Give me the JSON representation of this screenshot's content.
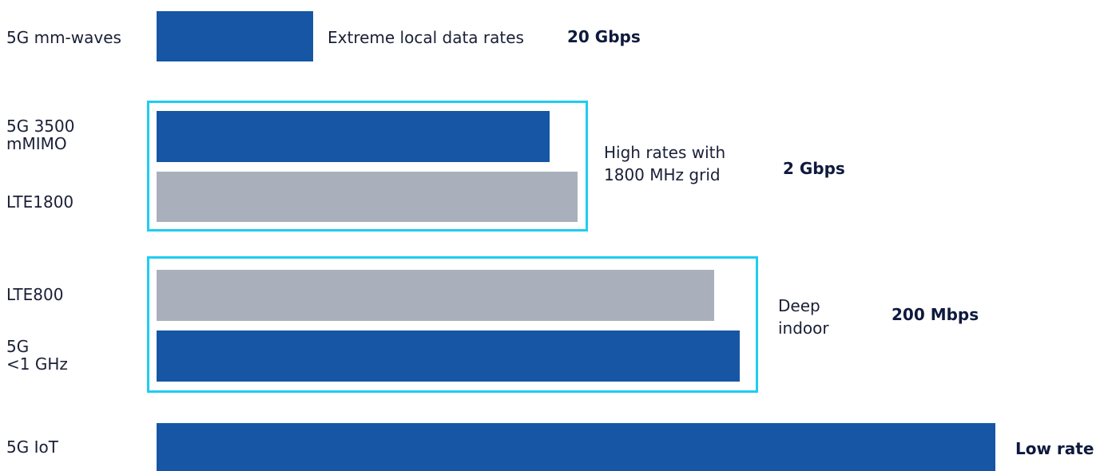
{
  "colors": {
    "blue": "#1656a4",
    "gray": "#a9b0bb",
    "frame": "#1fcdf0",
    "text": "#1a1f36"
  },
  "rows": {
    "mmwave": {
      "label": "5G mm-waves",
      "description": "Extreme local data rates",
      "rate": "20 Gbps"
    },
    "mid_band": {
      "label_5g": "5G 3500\nmMIMO",
      "label_lte": "LTE1800",
      "description": "High rates with\n1800 MHz grid",
      "rate": "2 Gbps"
    },
    "low_band": {
      "label_lte": "LTE800",
      "label_5g": "5G\n<1 GHz",
      "description": "Deep\nindoor",
      "rate": "200 Mbps"
    },
    "iot": {
      "label": "5G IoT",
      "rate": "Low rate"
    }
  }
}
